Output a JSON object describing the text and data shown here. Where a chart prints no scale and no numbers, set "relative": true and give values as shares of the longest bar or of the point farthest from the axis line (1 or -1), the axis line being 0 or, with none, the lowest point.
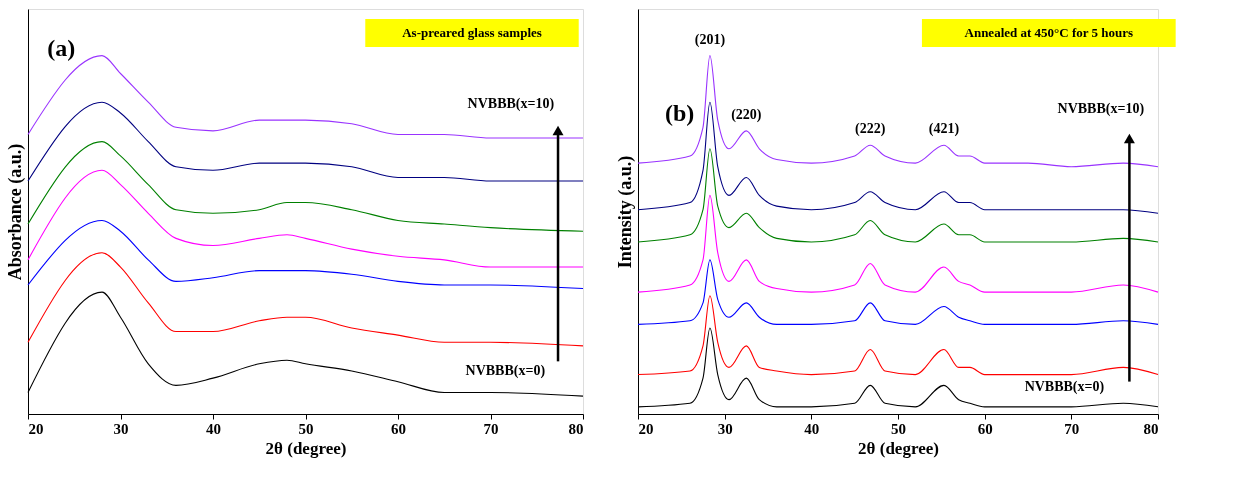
{
  "chart_data": [
    {
      "type": "line",
      "relative": true,
      "xlabel": "2θ (degree)",
      "ylabel": "Absorbance (a.u.)",
      "xlim": [
        20,
        80
      ],
      "xticks": [
        20,
        30,
        40,
        50,
        60,
        70,
        80
      ],
      "tick_labels": "x",
      "grid": false,
      "legend": false,
      "annotations": [
        "(a)",
        "As-preared glass samples",
        "NVBBB(x=10)",
        "NVBBB(x=0)"
      ],
      "x": [
        20,
        28,
        30,
        33,
        36,
        40,
        45,
        48,
        50,
        55,
        60,
        65,
        70,
        80
      ],
      "series": [
        {
          "color": "#000000",
          "values": [
            0.06,
            0.34,
            0.27,
            0.14,
            0.08,
            0.1,
            0.14,
            0.15,
            0.14,
            0.12,
            0.09,
            0.06,
            0.06,
            0.05
          ]
        },
        {
          "color": "#ff0000",
          "values": [
            0.2,
            0.45,
            0.41,
            0.31,
            0.23,
            0.23,
            0.26,
            0.27,
            0.27,
            0.24,
            0.22,
            0.2,
            0.2,
            0.19
          ]
        },
        {
          "color": "#0000ff",
          "values": [
            0.36,
            0.54,
            0.51,
            0.43,
            0.37,
            0.38,
            0.4,
            0.4,
            0.4,
            0.39,
            0.37,
            0.36,
            0.36,
            0.35
          ]
        },
        {
          "color": "#ff00ff",
          "values": [
            0.43,
            0.68,
            0.64,
            0.56,
            0.49,
            0.47,
            0.49,
            0.5,
            0.49,
            0.46,
            0.44,
            0.43,
            0.41,
            0.41
          ]
        },
        {
          "color": "#008000",
          "values": [
            0.53,
            0.76,
            0.72,
            0.64,
            0.57,
            0.56,
            0.57,
            0.59,
            0.59,
            0.57,
            0.54,
            0.53,
            0.52,
            0.51
          ]
        },
        {
          "color": "#000080",
          "values": [
            0.65,
            0.87,
            0.84,
            0.76,
            0.69,
            0.68,
            0.7,
            0.7,
            0.7,
            0.69,
            0.66,
            0.66,
            0.65,
            0.65
          ]
        },
        {
          "color": "#9933ff",
          "values": [
            0.78,
            1.0,
            0.95,
            0.87,
            0.8,
            0.79,
            0.82,
            0.82,
            0.82,
            0.81,
            0.78,
            0.78,
            0.77,
            0.77
          ]
        }
      ]
    },
    {
      "type": "line",
      "relative": true,
      "xlabel": "2θ (degree)",
      "ylabel": "Intensity (a.u.)",
      "xlim": [
        20,
        80
      ],
      "xticks": [
        20,
        30,
        40,
        50,
        60,
        70,
        80
      ],
      "tick_labels": "x",
      "grid": false,
      "legend": false,
      "annotations": [
        "(b)",
        "Annealed at 450°C for 5 hours",
        "NVBBB(x=10)",
        "NVBBB(x=0)",
        {
          "text": "(201)",
          "x": 28.3,
          "y": 1.0
        },
        {
          "text": "(220)",
          "x": 32.5,
          "y": 0.79
        },
        {
          "text": "(222)",
          "x": 46.8,
          "y": 0.75
        },
        {
          "text": "(421)",
          "x": 55.3,
          "y": 0.75
        }
      ],
      "x": [
        20,
        26,
        27.5,
        28.3,
        29.2,
        30.5,
        32.5,
        34,
        36,
        40,
        45,
        46.8,
        48.5,
        52,
        55.3,
        57,
        58.3,
        60,
        65,
        70,
        76,
        80
      ],
      "series": [
        {
          "color": "#000000",
          "values": [
            0.02,
            0.03,
            0.1,
            0.24,
            0.11,
            0.04,
            0.1,
            0.04,
            0.02,
            0.02,
            0.03,
            0.08,
            0.03,
            0.02,
            0.08,
            0.04,
            0.03,
            0.02,
            0.02,
            0.02,
            0.03,
            0.02
          ]
        },
        {
          "color": "#ff0000",
          "values": [
            0.11,
            0.12,
            0.19,
            0.33,
            0.2,
            0.13,
            0.19,
            0.13,
            0.12,
            0.11,
            0.12,
            0.18,
            0.12,
            0.11,
            0.18,
            0.13,
            0.13,
            0.11,
            0.11,
            0.11,
            0.13,
            0.11
          ]
        },
        {
          "color": "#0000ff",
          "values": [
            0.25,
            0.26,
            0.31,
            0.43,
            0.32,
            0.27,
            0.31,
            0.27,
            0.25,
            0.25,
            0.26,
            0.31,
            0.26,
            0.25,
            0.3,
            0.27,
            0.26,
            0.25,
            0.25,
            0.25,
            0.26,
            0.25
          ]
        },
        {
          "color": "#ff00ff",
          "values": [
            0.34,
            0.36,
            0.43,
            0.61,
            0.45,
            0.37,
            0.43,
            0.37,
            0.35,
            0.34,
            0.36,
            0.42,
            0.36,
            0.34,
            0.41,
            0.37,
            0.36,
            0.34,
            0.34,
            0.34,
            0.36,
            0.34
          ]
        },
        {
          "color": "#008000",
          "values": [
            0.48,
            0.5,
            0.57,
            0.74,
            0.58,
            0.52,
            0.56,
            0.52,
            0.49,
            0.48,
            0.5,
            0.54,
            0.5,
            0.48,
            0.53,
            0.5,
            0.5,
            0.48,
            0.48,
            0.48,
            0.49,
            0.48
          ]
        },
        {
          "color": "#000080",
          "values": [
            0.57,
            0.59,
            0.68,
            0.87,
            0.69,
            0.61,
            0.66,
            0.61,
            0.58,
            0.57,
            0.59,
            0.62,
            0.59,
            0.57,
            0.62,
            0.59,
            0.59,
            0.57,
            0.57,
            0.57,
            0.57,
            0.56
          ]
        },
        {
          "color": "#9933ff",
          "values": [
            0.7,
            0.72,
            0.8,
            1.0,
            0.82,
            0.74,
            0.79,
            0.74,
            0.71,
            0.7,
            0.72,
            0.75,
            0.72,
            0.7,
            0.75,
            0.72,
            0.72,
            0.7,
            0.7,
            0.69,
            0.7,
            0.69
          ]
        }
      ]
    }
  ]
}
